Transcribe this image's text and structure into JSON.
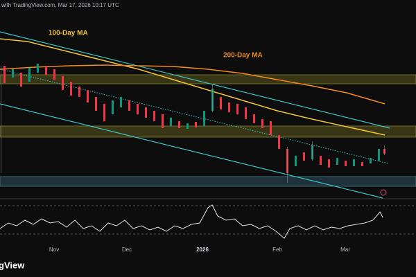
{
  "header": {
    "text": "with TradingView.com, Mar 17, 2026 10:17 UTC"
  },
  "annotations": {
    "ma100": "100-Day MA",
    "ma200": "200-Day MA"
  },
  "x_axis": {
    "labels": [
      "Nov",
      "Dec",
      "2026",
      "Feb",
      "Mar"
    ]
  },
  "logo": {
    "text": "gView"
  }
}
